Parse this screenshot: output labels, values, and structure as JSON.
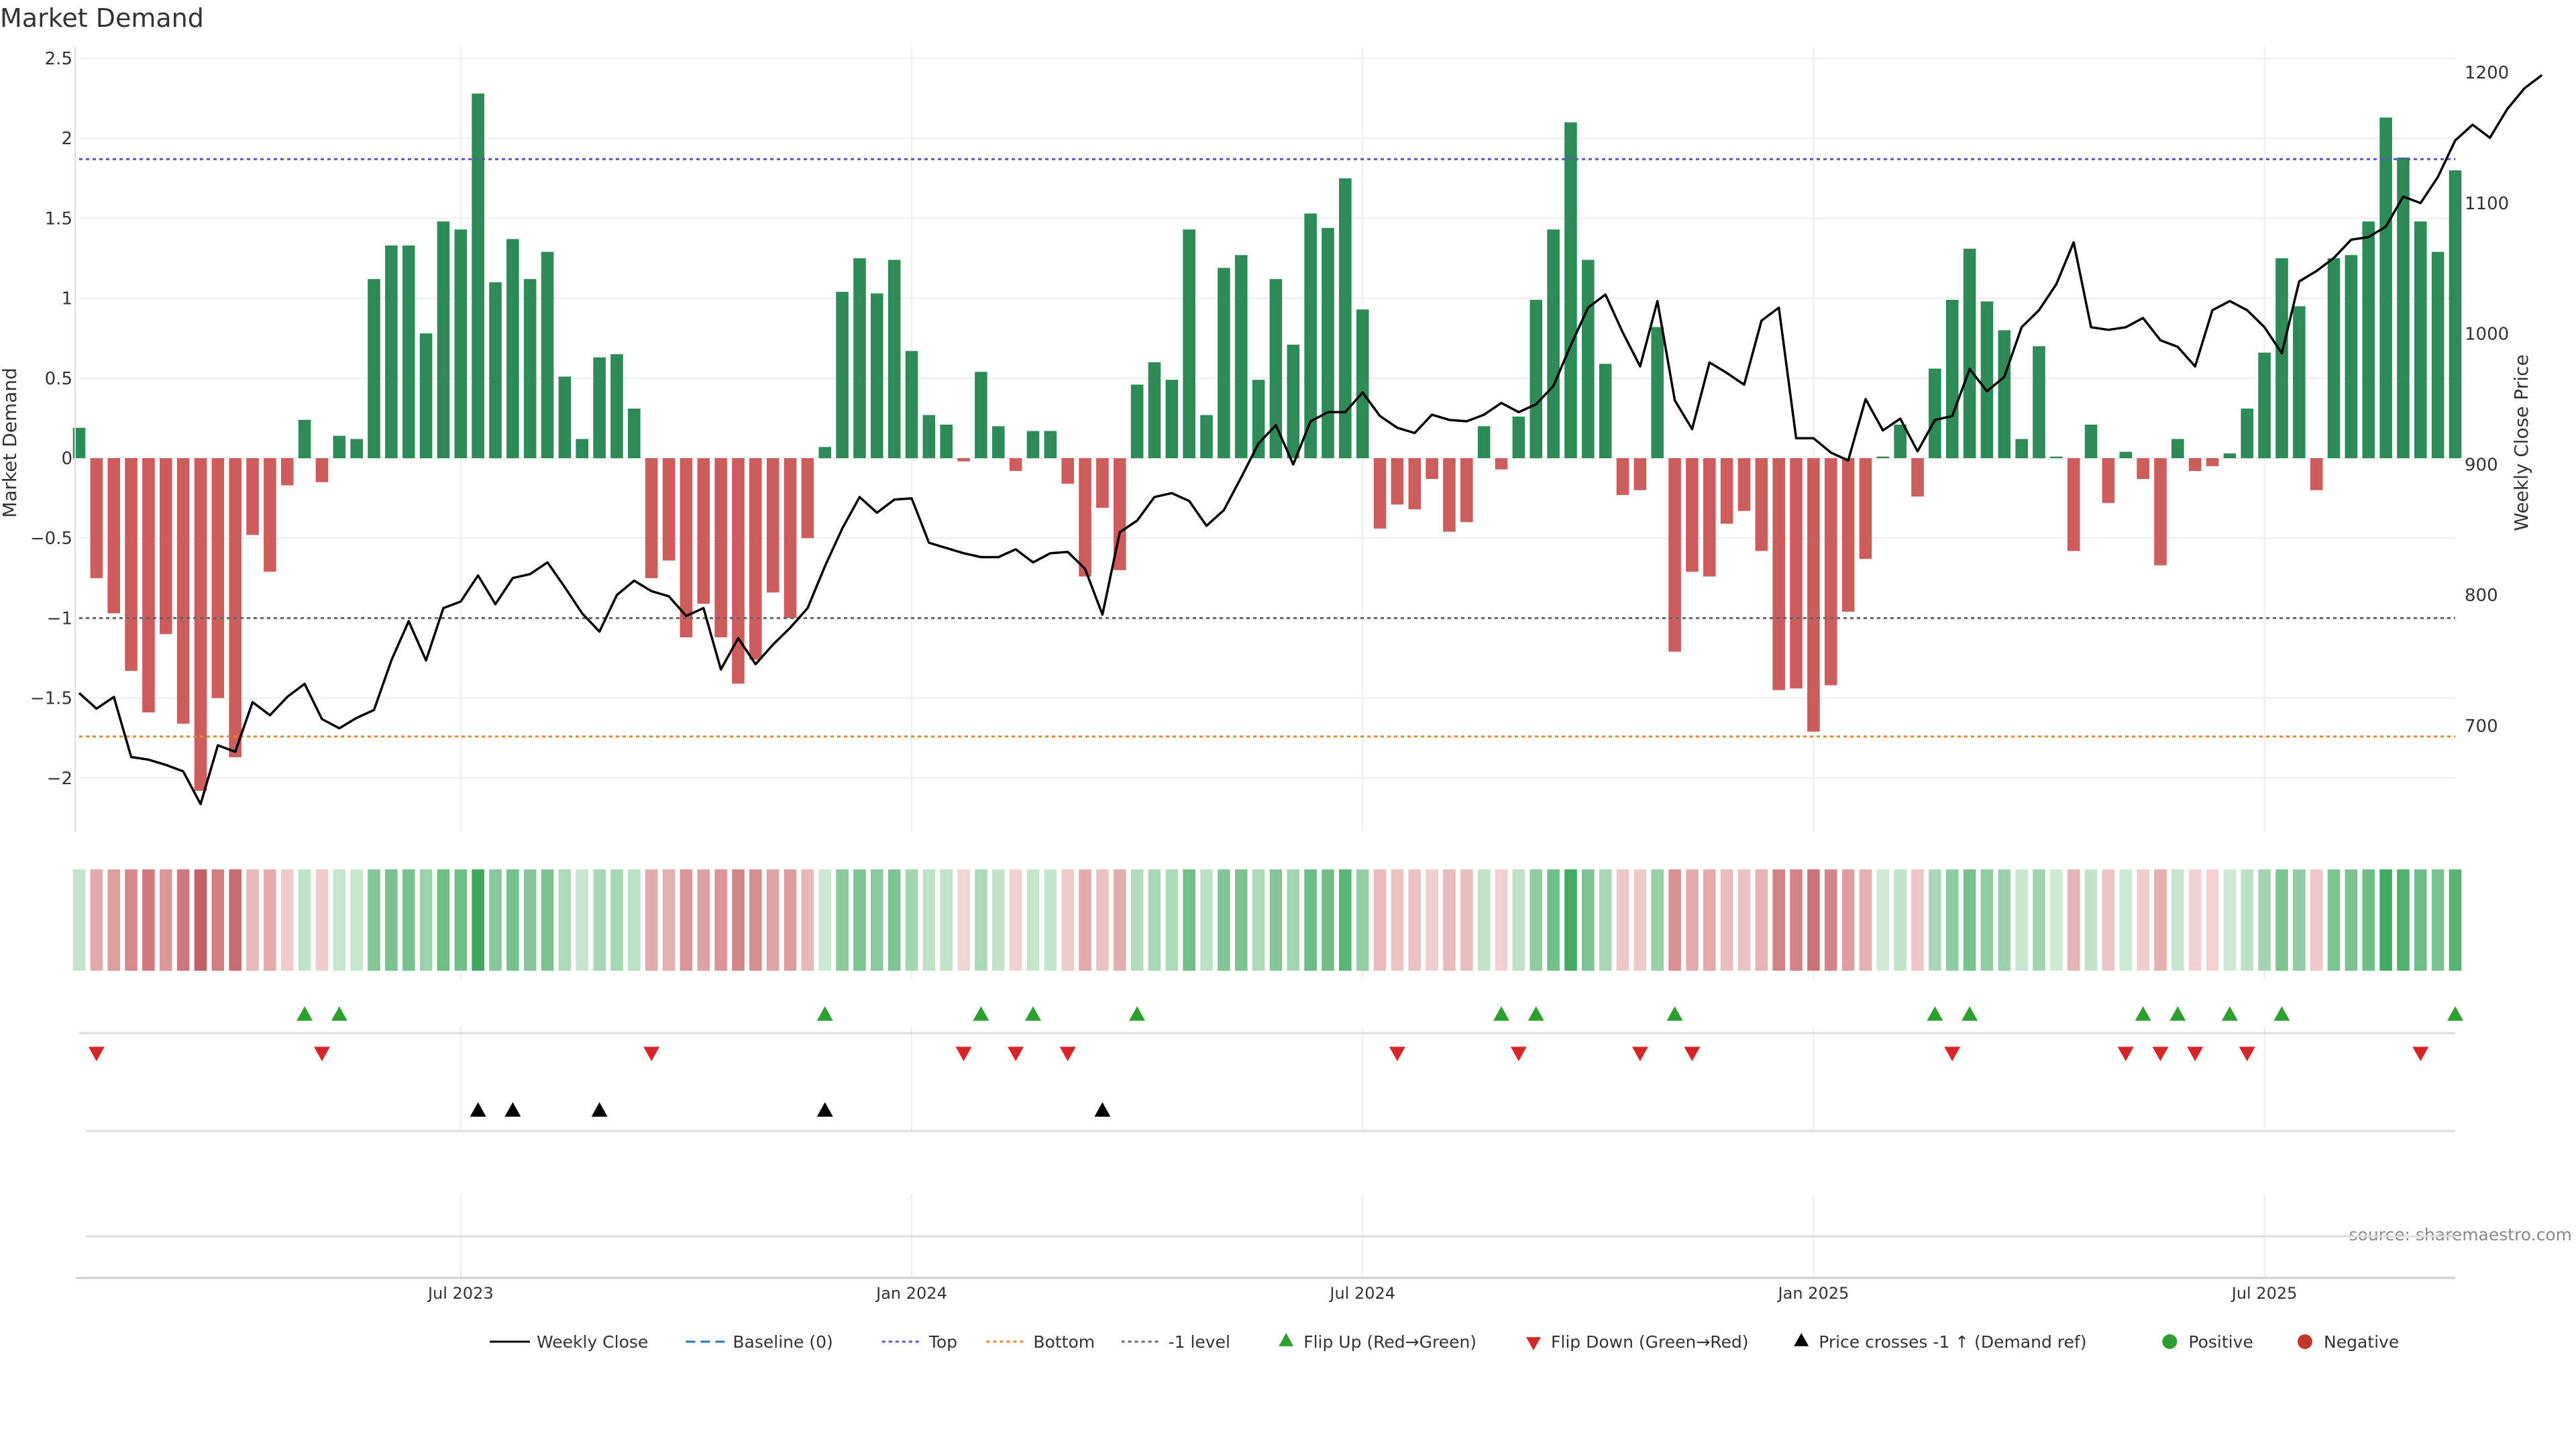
{
  "chart_data": {
    "type": "bar",
    "title": "Market Demand",
    "ylabel": "Market Demand",
    "y2label": "Weekly Close Price",
    "ylim": [
      -2.35,
      2.5
    ],
    "y2lim": [
      600,
      1212
    ],
    "yticks": [
      "2.5",
      "2",
      "1.5",
      "1",
      "0.5",
      "0",
      "−0.5",
      "−1",
      "−1.5",
      "−2"
    ],
    "yticks_values": [
      2.5,
      2,
      1.5,
      1,
      0.5,
      0,
      -0.5,
      -1,
      -1.5,
      -2
    ],
    "y2ticks": [
      "1200",
      "1100",
      "1000",
      "900",
      "800",
      "700"
    ],
    "y2ticks_values": [
      1200,
      1100,
      1000,
      900,
      800,
      700
    ],
    "xticks": [
      "Jul 2023",
      "Jan 2024",
      "Jul 2024",
      "Jan 2025",
      "Jul 2025"
    ],
    "xticks_week_index": [
      22,
      48,
      74,
      100,
      126
    ],
    "reference_lines": {
      "top": 1.87,
      "bottom": -1.74,
      "minus_one": -1.0,
      "baseline": 0
    },
    "series": [
      {
        "name": "Market Demand",
        "values": [
          0.19,
          -0.75,
          -0.97,
          -1.33,
          -1.59,
          -1.1,
          -1.66,
          -2.08,
          -1.5,
          -1.87,
          -0.48,
          -0.71,
          -0.17,
          0.24,
          -0.15,
          0.14,
          0.12,
          1.12,
          1.33,
          1.33,
          0.78,
          1.48,
          1.43,
          2.28,
          1.1,
          1.37,
          1.12,
          1.29,
          0.51,
          0.12,
          0.63,
          0.65,
          0.31,
          -0.75,
          -0.64,
          -1.12,
          -0.91,
          -1.12,
          -1.41,
          -1.26,
          -0.84,
          -1.0,
          -0.5,
          0.07,
          1.04,
          1.25,
          1.03,
          1.24,
          0.67,
          0.27,
          0.21,
          -0.02,
          0.54,
          0.2,
          -0.08,
          0.17,
          0.17,
          -0.16,
          -0.74,
          -0.31,
          -0.7,
          0.46,
          0.6,
          0.49,
          1.43,
          0.27,
          1.19,
          1.27,
          0.49,
          1.12,
          0.71,
          1.53,
          1.44,
          1.75,
          0.93,
          -0.44,
          -0.29,
          -0.32,
          -0.13,
          -0.46,
          -0.4,
          0.2,
          -0.07,
          0.26,
          0.99,
          1.43,
          2.1,
          1.24,
          0.59,
          -0.23,
          -0.2,
          0.82,
          -1.21,
          -0.71,
          -0.74,
          -0.41,
          -0.33,
          -0.58,
          -1.45,
          -1.44,
          -1.71,
          -1.42,
          -0.96,
          -0.63,
          0.01,
          0.21,
          -0.24,
          0.56,
          0.99,
          1.31,
          0.98,
          0.8,
          0.12,
          0.7,
          0.01,
          -0.58,
          0.21,
          -0.28,
          0.04,
          -0.13,
          -0.67,
          0.12,
          -0.08,
          -0.05,
          0.03,
          0.31,
          0.66,
          1.25,
          0.95,
          -0.2,
          1.25,
          1.27,
          1.48,
          2.13,
          1.88,
          1.48,
          1.29,
          1.8
        ]
      },
      {
        "name": "Weekly Close",
        "values": [
          725,
          713,
          722,
          676,
          674,
          670,
          665,
          640,
          685,
          680,
          718,
          708,
          722,
          732,
          705,
          698,
          706,
          712,
          750,
          780,
          750,
          790,
          795,
          815,
          793,
          813,
          816,
          825,
          806,
          786,
          772,
          800,
          811,
          803,
          799,
          784,
          790,
          743,
          767,
          747,
          762,
          775,
          790,
          822,
          851,
          875,
          863,
          873,
          874,
          840,
          836,
          832,
          829,
          829,
          835,
          825,
          832,
          833,
          820,
          785,
          848,
          857,
          875,
          878,
          872,
          853,
          865,
          890,
          916,
          930,
          900,
          933,
          940,
          940,
          955,
          937,
          928,
          924,
          938,
          934,
          933,
          938,
          947,
          940,
          946,
          960,
          991,
          1020,
          1030,
          1001,
          975,
          1025,
          949,
          927,
          978,
          970,
          961,
          1010,
          1020,
          920,
          920,
          909,
          903,
          950,
          926,
          935,
          910,
          934,
          937,
          973,
          956,
          967,
          1005,
          1018,
          1038,
          1070,
          1005,
          1003,
          1005,
          1012,
          995,
          990,
          975,
          1018,
          1025,
          1018,
          1005,
          985,
          1040,
          1048,
          1058,
          1072,
          1074,
          1082,
          1105,
          1100,
          1120,
          1148,
          1160,
          1150,
          1172,
          1188,
          1198
        ]
      }
    ],
    "heatstrip": "weekly Market Demand shaded red (negative) to green (positive)",
    "flip_up_weeks": [
      13,
      15,
      43,
      52,
      55,
      61,
      82,
      84,
      92,
      107,
      109,
      119,
      121,
      124,
      127,
      137
    ],
    "flip_down_weeks": [
      1,
      14,
      33,
      51,
      54,
      57,
      76,
      83,
      90,
      93,
      108,
      118,
      120,
      122,
      125,
      135
    ],
    "price_cross_weeks": [
      23,
      25,
      30,
      43,
      59
    ],
    "source_text": "source: sharemaestro.com",
    "legend": [
      {
        "label": "Weekly Close",
        "symbol": "solid-line",
        "color": "#000000"
      },
      {
        "label": "Baseline (0)",
        "symbol": "dashed-line",
        "color": "#1f77b4"
      },
      {
        "label": "Top",
        "symbol": "dotted-line",
        "color": "#5b50c8"
      },
      {
        "label": "Bottom",
        "symbol": "dotted-line",
        "color": "#e08a2c"
      },
      {
        "label": "-1 level",
        "symbol": "dotted-line",
        "color": "#666666"
      },
      {
        "label": "Flip Up (Red→Green)",
        "symbol": "triangle-up",
        "color": "#2ca02c"
      },
      {
        "label": "Flip Down (Green→Red)",
        "symbol": "triangle-down",
        "color": "#d62728"
      },
      {
        "label": "Price crosses -1 ↑ (Demand ref)",
        "symbol": "triangle-up",
        "color": "#000000"
      },
      {
        "label": "Positive",
        "symbol": "dot",
        "color": "#2ca02c"
      },
      {
        "label": "Negative",
        "symbol": "dot",
        "color": "#c0392b"
      }
    ],
    "colors": {
      "positive_bar": "#2e8b57",
      "negative_bar": "#cd5c5c",
      "close_line": "#000000",
      "top_line": "#5b50c8",
      "bottom_line": "#e08a2c",
      "minus_one_line": "#666666",
      "flip_up": "#2ca02c",
      "flip_down": "#d62728",
      "cross": "#000000"
    }
  }
}
